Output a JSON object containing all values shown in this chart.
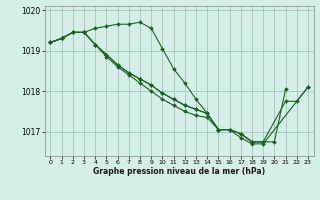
{
  "bg_color": "#d4eee8",
  "line_color": "#1a6620",
  "grid_color": "#a0c8b8",
  "xlabel": "Graphe pression niveau de la mer (hPa)",
  "ylim": [
    1016.4,
    1020.1
  ],
  "xlim": [
    -0.5,
    23.5
  ],
  "yticks": [
    1017,
    1018,
    1019,
    1020
  ],
  "xticks": [
    0,
    1,
    2,
    3,
    4,
    5,
    6,
    7,
    8,
    9,
    10,
    11,
    12,
    13,
    14,
    15,
    16,
    17,
    18,
    19,
    20,
    21,
    22,
    23
  ],
  "series": [
    [
      1019.2,
      1019.3,
      1019.45,
      1019.45,
      1019.55,
      1019.6,
      1019.65,
      1019.65,
      1019.7,
      1019.55,
      1019.05,
      1018.55,
      1018.2,
      1017.8,
      1017.45,
      1017.05,
      1017.05,
      1016.95,
      1016.75,
      1016.75,
      1016.75,
      1018.05,
      null,
      null
    ],
    [
      1019.2,
      1019.3,
      1019.45,
      1019.45,
      1019.15,
      1018.9,
      1018.65,
      1018.45,
      1018.3,
      1018.15,
      1017.95,
      1017.8,
      1017.65,
      1017.55,
      1017.45,
      1017.05,
      1017.05,
      1016.95,
      1016.75,
      1016.75,
      null,
      null,
      null,
      null
    ],
    [
      1019.2,
      1019.3,
      1019.45,
      1019.45,
      1019.15,
      1018.9,
      1018.65,
      1018.45,
      1018.3,
      1018.15,
      1017.95,
      1017.8,
      1017.65,
      1017.55,
      1017.45,
      1017.05,
      1017.05,
      1016.95,
      1016.75,
      1016.75,
      null,
      1017.75,
      1017.75,
      1018.1
    ],
    [
      1019.2,
      1019.3,
      1019.45,
      1019.45,
      1019.15,
      1018.85,
      1018.6,
      1018.4,
      1018.2,
      1018.0,
      1017.8,
      1017.65,
      1017.5,
      1017.4,
      1017.35,
      1017.05,
      1017.05,
      1016.85,
      1016.7,
      1016.7,
      null,
      null,
      null,
      1018.1
    ]
  ],
  "figsize": [
    3.2,
    2.0
  ],
  "dpi": 100
}
